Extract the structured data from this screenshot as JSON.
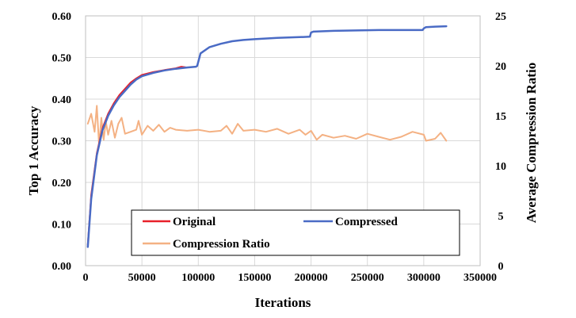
{
  "chart_data": {
    "type": "line",
    "xlabel": "Iterations",
    "ylabel": "Top 1 Accuracy",
    "y2label": "Average Compression Ratio",
    "xlim": [
      0,
      350000
    ],
    "ylim": [
      0,
      0.6
    ],
    "y2lim": [
      0,
      25
    ],
    "x_ticks": [
      0,
      50000,
      100000,
      150000,
      200000,
      250000,
      300000,
      350000
    ],
    "x_tick_labels": [
      "0",
      "50000",
      "100000",
      "150000",
      "200000",
      "250000",
      "300000",
      "350000"
    ],
    "y_ticks": [
      0,
      0.1,
      0.2,
      0.3,
      0.4,
      0.5,
      0.6
    ],
    "y_tick_labels": [
      "0.00",
      "0.10",
      "0.20",
      "0.30",
      "0.40",
      "0.50",
      "0.60"
    ],
    "y2_ticks": [
      0,
      5,
      10,
      15,
      20,
      25
    ],
    "y2_tick_labels": [
      "0",
      "5",
      "10",
      "15",
      "20",
      "25"
    ],
    "grid": true,
    "legend": {
      "placement": "bottom-right",
      "entries": [
        "Original",
        "Compressed",
        "Compression Ratio"
      ]
    },
    "series": [
      {
        "name": "Original",
        "axis": "left",
        "color": "#e8202a",
        "x": [
          2000,
          5000,
          10000,
          15000,
          20000,
          25000,
          30000,
          35000,
          40000,
          45000,
          50000,
          60000,
          70000,
          80000,
          85000,
          90000
        ],
        "y": [
          0.05,
          0.17,
          0.27,
          0.33,
          0.365,
          0.39,
          0.41,
          0.425,
          0.44,
          0.45,
          0.458,
          0.465,
          0.47,
          0.474,
          0.478,
          0.476
        ]
      },
      {
        "name": "Compressed",
        "axis": "left",
        "color": "#4a6bc5",
        "x": [
          2000,
          5000,
          10000,
          15000,
          20000,
          25000,
          30000,
          35000,
          40000,
          45000,
          50000,
          60000,
          70000,
          80000,
          90000,
          98000,
          99000,
          102000,
          110000,
          120000,
          130000,
          140000,
          150000,
          170000,
          190000,
          199000,
          200000,
          202000,
          220000,
          240000,
          260000,
          280000,
          299000,
          300000,
          302000,
          310000,
          320000
        ],
        "y": [
          0.045,
          0.16,
          0.265,
          0.325,
          0.36,
          0.385,
          0.405,
          0.42,
          0.435,
          0.447,
          0.455,
          0.463,
          0.469,
          0.473,
          0.476,
          0.478,
          0.48,
          0.51,
          0.525,
          0.533,
          0.539,
          0.542,
          0.544,
          0.547,
          0.549,
          0.55,
          0.56,
          0.562,
          0.564,
          0.565,
          0.566,
          0.566,
          0.566,
          0.57,
          0.573,
          0.574,
          0.575
        ]
      },
      {
        "name": "Compression Ratio",
        "axis": "right",
        "color": "#f4b183",
        "x": [
          2000,
          5000,
          8000,
          10000,
          12000,
          14000,
          16000,
          18000,
          20000,
          23000,
          26000,
          29000,
          32000,
          35000,
          40000,
          45000,
          47000,
          50000,
          55000,
          60000,
          65000,
          70000,
          75000,
          80000,
          90000,
          100000,
          110000,
          120000,
          125000,
          130000,
          135000,
          140000,
          150000,
          160000,
          170000,
          180000,
          190000,
          195000,
          200000,
          205000,
          210000,
          220000,
          230000,
          240000,
          250000,
          260000,
          270000,
          280000,
          290000,
          300000,
          302000,
          310000,
          315000,
          320000
        ],
        "y": [
          14.2,
          15.2,
          13.4,
          16.0,
          12.0,
          14.8,
          12.6,
          14.4,
          13.1,
          14.5,
          12.8,
          14.2,
          14.8,
          13.2,
          13.4,
          13.6,
          14.5,
          13.1,
          14.0,
          13.5,
          14.1,
          13.4,
          13.8,
          13.6,
          13.5,
          13.6,
          13.4,
          13.5,
          14.0,
          13.2,
          14.2,
          13.5,
          13.6,
          13.4,
          13.7,
          13.2,
          13.6,
          13.1,
          13.5,
          12.6,
          13.1,
          12.8,
          13.0,
          12.7,
          13.2,
          12.9,
          12.6,
          12.9,
          13.4,
          13.1,
          12.5,
          12.7,
          13.3,
          12.5
        ]
      }
    ]
  }
}
